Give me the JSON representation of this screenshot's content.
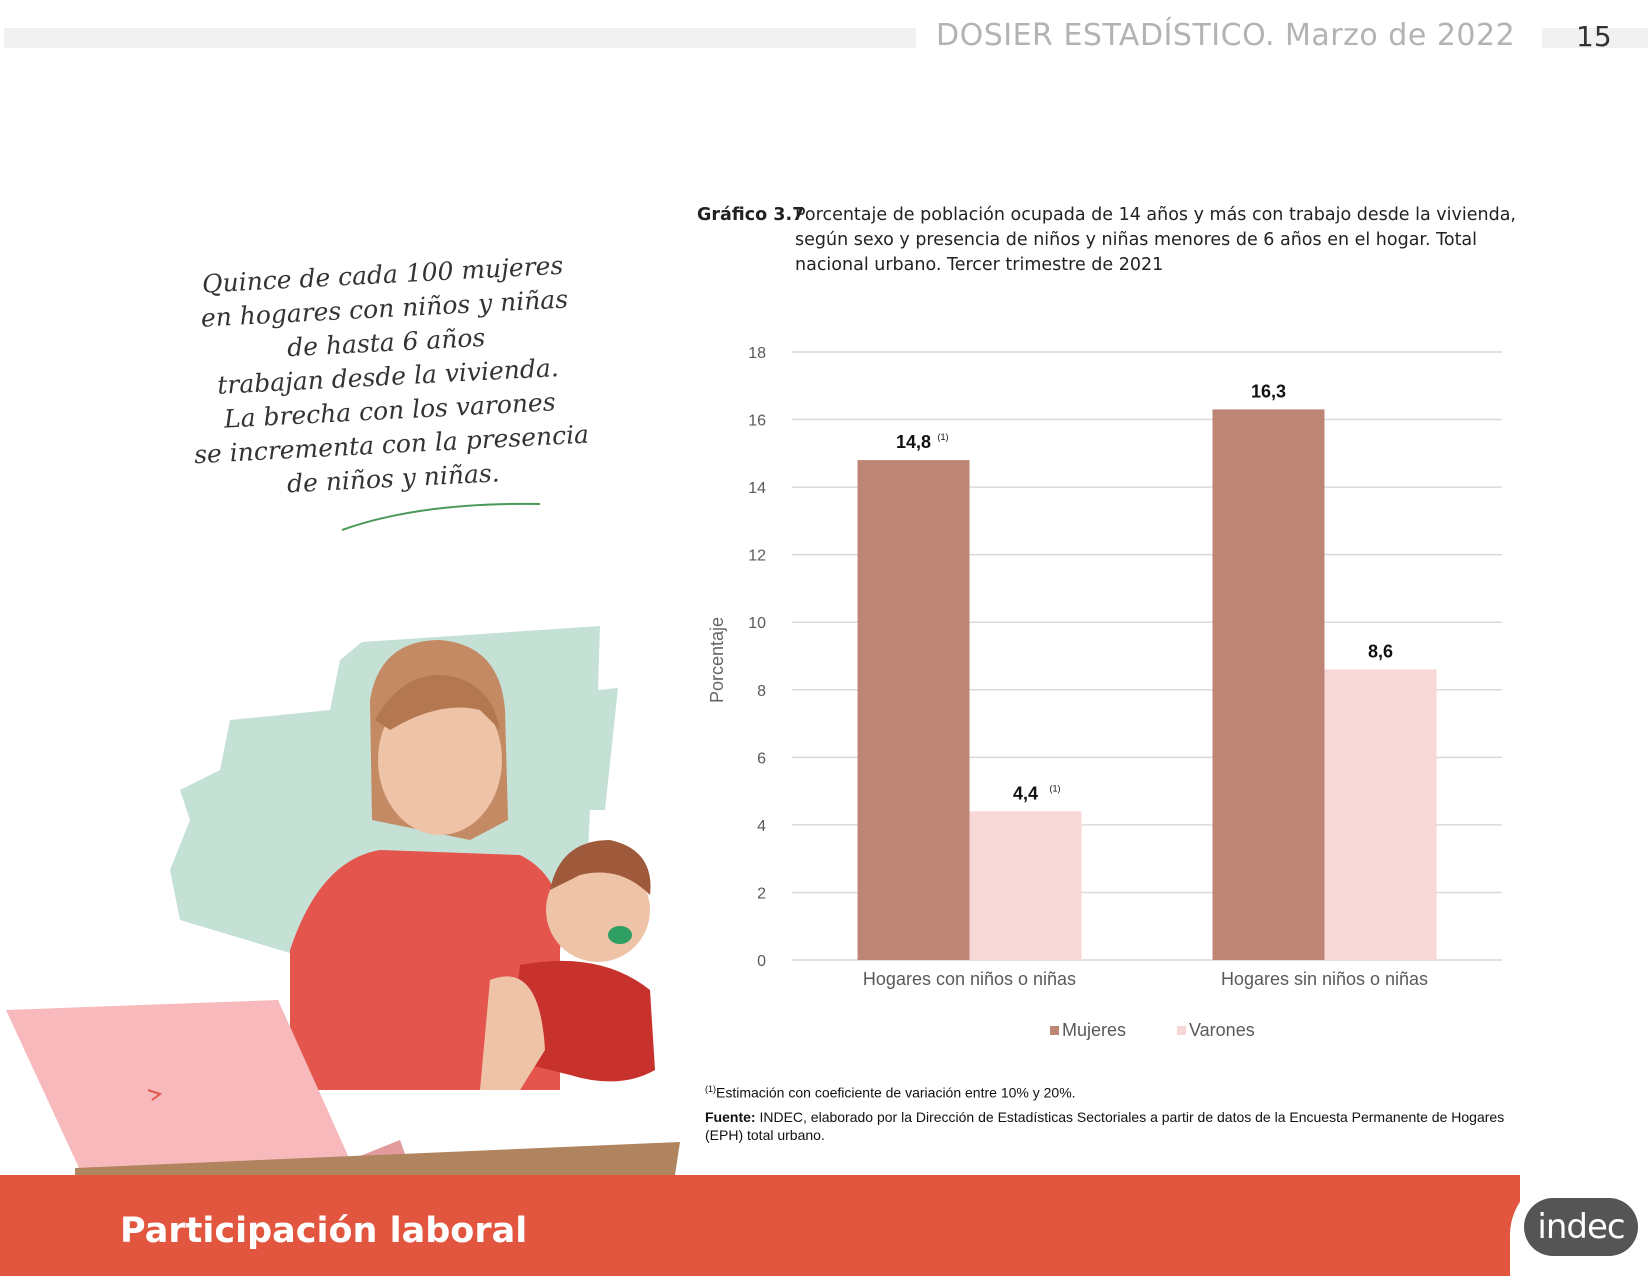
{
  "header": {
    "title": "DOSIER ESTADÍSTICO. Marzo de 2022",
    "page": "15"
  },
  "quote": {
    "lines": [
      "Quince de cada 100 mujeres",
      "en hogares con niños y niñas",
      "de hasta 6 años",
      "trabajan desde la vivienda.",
      "La brecha con los varones",
      "se incrementa con la presencia",
      "de niños y niñas."
    ]
  },
  "caption": {
    "number": "Gráfico 3.7",
    "text": "Porcentaje de población ocupada de 14 años y más con trabajo desde la vivienda, según sexo y presencia de niños y niñas menores de 6 años en el hogar. Total nacional urbano. Tercer trimestre de 2021"
  },
  "chart_data": {
    "type": "bar",
    "title": "",
    "xlabel": "",
    "ylabel": "Porcentaje",
    "ylim": [
      0,
      18
    ],
    "yticks": [
      "0",
      "2",
      "4",
      "6",
      "8",
      "10",
      "12",
      "14",
      "16",
      "18"
    ],
    "categories": [
      "Hogares con niños o niñas",
      "Hogares sin niños o niñas"
    ],
    "series": [
      {
        "name": "Mujeres",
        "values": [
          14.8,
          16.3
        ],
        "labels": [
          "14,8",
          "16,3"
        ],
        "notes": [
          "(1)",
          ""
        ],
        "color": "#bf8574"
      },
      {
        "name": "Varones",
        "values": [
          4.4,
          8.6
        ],
        "labels": [
          "4,4",
          "8,6"
        ],
        "notes": [
          "(1)",
          ""
        ],
        "color": "#f8d7d7"
      }
    ],
    "grid": true,
    "legend": "bottom"
  },
  "notes": {
    "footnote_mark": "(1)",
    "footnote": "Estimación con coeficiente de variación entre 10% y 20%.",
    "source_label": "Fuente:",
    "source": "INDEC, elaborado por la Dirección de Estadísticas Sectoriales a partir de datos de la Encuesta Permanente de Hogares (EPH) total urbano."
  },
  "footer": {
    "title": "Participación laboral",
    "logo_text": "indec"
  },
  "colors": {
    "footer": "#e2553e",
    "mujeres": "#bf8574",
    "varones": "#f8d7d7",
    "grid": "#d9d9d9"
  }
}
